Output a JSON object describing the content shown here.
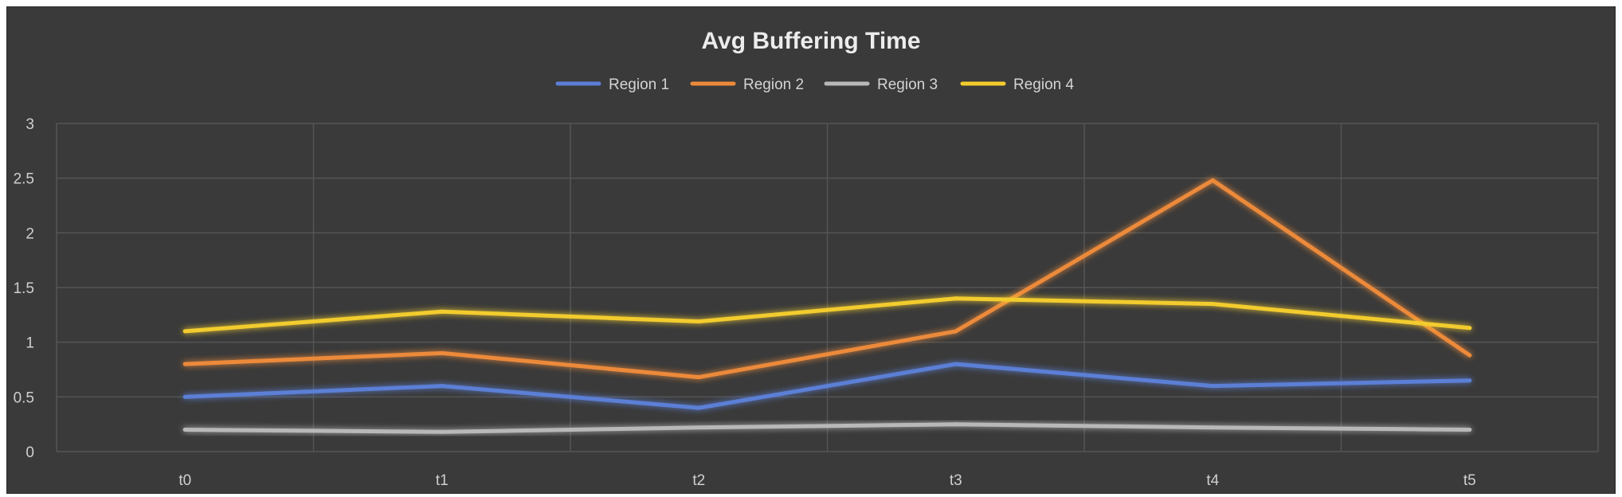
{
  "chart_data": {
    "type": "line",
    "title": "Avg Buffering Time",
    "xlabel": "",
    "ylabel": "",
    "categories": [
      "t0",
      "t1",
      "t2",
      "t3",
      "t4",
      "t5"
    ],
    "ylim": [
      0,
      3
    ],
    "yticks": [
      "0",
      "0.5",
      "1",
      "1.5",
      "2",
      "2.5",
      "3"
    ],
    "yticks_values": [
      0,
      0.5,
      1,
      1.5,
      2,
      2.5,
      3
    ],
    "grid": true,
    "legend_position": "top-center",
    "series": [
      {
        "name": "Region 1",
        "color": "#5b7fd6",
        "values": [
          0.5,
          0.6,
          0.4,
          0.8,
          0.6,
          0.65
        ]
      },
      {
        "name": "Region 2",
        "color": "#ec8a3a",
        "values": [
          0.8,
          0.9,
          0.68,
          1.1,
          2.48,
          0.88
        ]
      },
      {
        "name": "Region 3",
        "color": "#b8b8b8",
        "values": [
          0.2,
          0.18,
          0.22,
          0.25,
          0.22,
          0.2
        ]
      },
      {
        "name": "Region 4",
        "color": "#f2cc2e",
        "values": [
          1.1,
          1.28,
          1.19,
          1.4,
          1.35,
          1.13
        ]
      }
    ]
  }
}
